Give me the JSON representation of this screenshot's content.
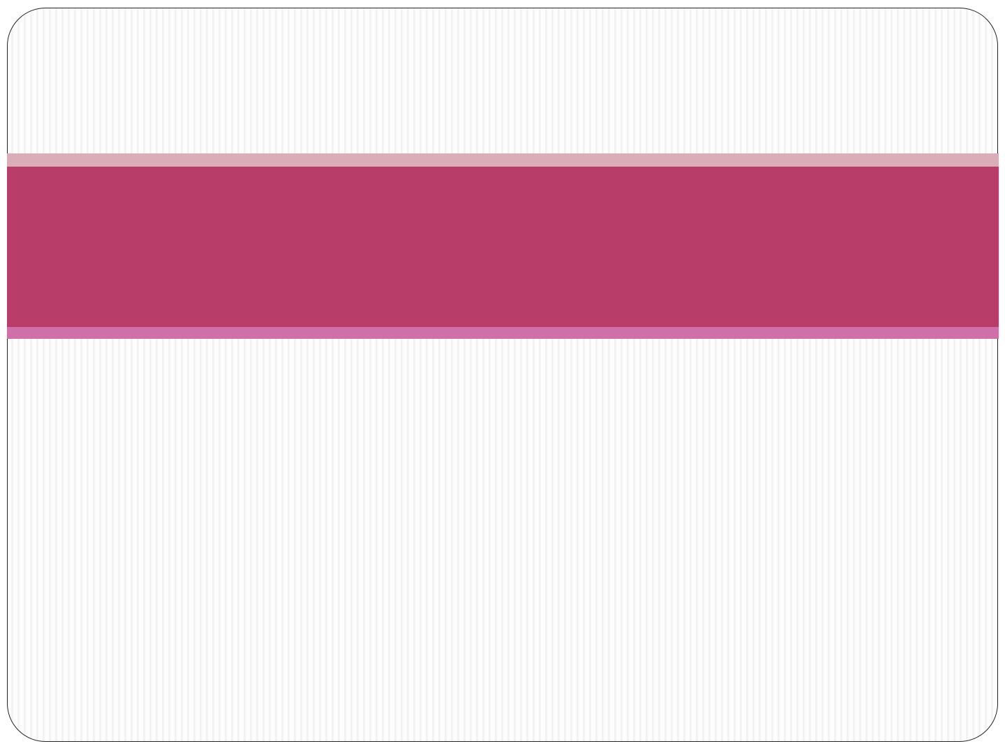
{
  "slide": {
    "colors": {
      "band_top": "#d9aeb8",
      "band_main": "#b83d69",
      "band_bottom": "#d070a8",
      "frame_border": "#222222"
    }
  }
}
